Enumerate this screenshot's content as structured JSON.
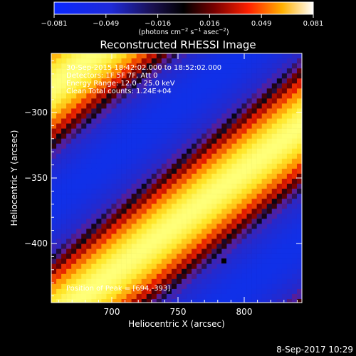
{
  "colorbar": {
    "ticks": [
      "−0.081",
      "−0.049",
      "−0.016",
      "0.016",
      "0.049",
      "0.081"
    ],
    "units_label": "(photons cm",
    "units_exp1": "−2",
    "units_mid": " s",
    "units_exp2": "−1",
    "units_tail": " asec",
    "units_exp3": "−2",
    "units_close": ")"
  },
  "image": {
    "title": "Reconstructed RHESSI Image",
    "info_lines": [
      "30-Sep-2015 18:42:02.000 to 18:52:02.000",
      "Detectors: 1F 5F 7F, Att 0",
      "Energy Range: 12.0 - 25.0 keV",
      "Clean     Total counts: 1.24E+04"
    ],
    "peak_label": "Position of Peak = [694,-393]"
  },
  "axes": {
    "xlabel": "Heliocentric X (arcsec)",
    "ylabel": "Heliocentric Y (arcsec)",
    "xticks": [
      "700",
      "750",
      "800"
    ],
    "yticks": [
      "−300",
      "−350",
      "−400"
    ]
  },
  "footer": {
    "timestamp": "8-Sep-2017 10:29"
  },
  "colors": {
    "background": "#000000",
    "foreground": "#ffffff",
    "low": "#1030e8",
    "high": "#ffff40"
  }
}
